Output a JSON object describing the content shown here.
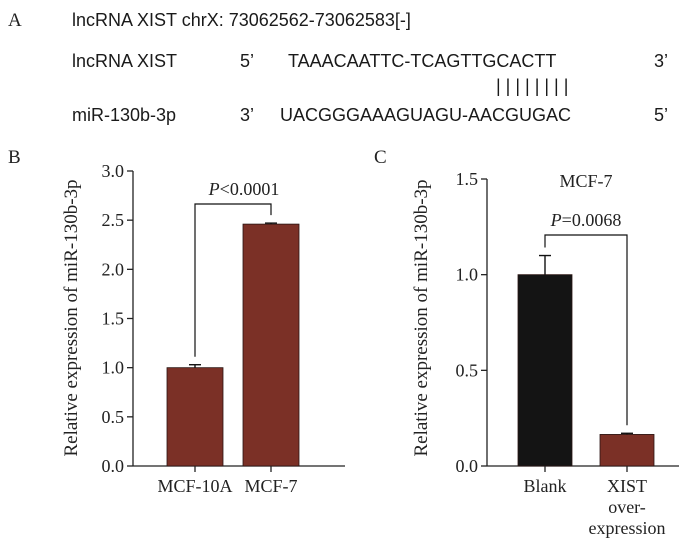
{
  "panels": {
    "a": "A",
    "b": "B",
    "c": "C"
  },
  "sequence": {
    "header": "lncRNA XIST chrX: 73062562-73062583[-]",
    "row1_name": "lncRNA XIST",
    "row1_end5": "5’",
    "row1_seq": "TAAACAATTC-TCAGTTGCACTT",
    "row1_end3": "3’",
    "pairing": "| | | | | | | |",
    "row2_name": "miR-130b-3p",
    "row2_end3": "3’",
    "row2_seq": "UACGGGAAAGUAGU-AACGUGAC",
    "row2_end5": "5’"
  },
  "colors": {
    "bar_red": "#7b3026",
    "bar_black": "#141414",
    "axis": "#222222"
  },
  "chart_data": [
    {
      "type": "bar",
      "panel": "B",
      "categories": [
        "MCF-10A",
        "MCF-7"
      ],
      "values": [
        1.0,
        2.46
      ],
      "errors": [
        0.03,
        0.01
      ],
      "bar_colors": [
        "#7b3026",
        "#7b3026"
      ],
      "ylabel": "Relative expression of miR-130b-3p",
      "ylim": [
        0,
        3.0
      ],
      "yticks": [
        "0.0",
        "0.5",
        "1.0",
        "1.5",
        "2.0",
        "2.5",
        "3.0"
      ],
      "significance_prefix": "P",
      "significance_value": "<0.0001"
    },
    {
      "type": "bar",
      "panel": "C",
      "title": "MCF-7",
      "categories": [
        "Blank",
        "XIST over-expression"
      ],
      "category_lines": [
        [
          "Blank"
        ],
        [
          "XIST",
          "over-",
          "expression"
        ]
      ],
      "values": [
        1.0,
        0.165
      ],
      "errors": [
        0.1,
        0.006
      ],
      "bar_colors": [
        "#141414",
        "#7b3026"
      ],
      "ylabel": "Relative expression of miR-130b-3p",
      "ylim": [
        0,
        1.5
      ],
      "yticks": [
        "0.0",
        "0.5",
        "1.0",
        "1.5"
      ],
      "significance_prefix": "P",
      "significance_value": "=0.0068"
    }
  ]
}
